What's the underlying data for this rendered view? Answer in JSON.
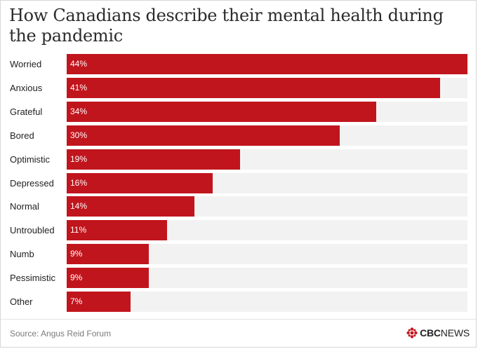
{
  "title": "How Canadians describe their mental health during the pandemic",
  "source": "Source: Angus Reid Forum",
  "logo": {
    "bold": "CBC",
    "light": "NEWS"
  },
  "colors": {
    "bar": "#c1151d",
    "track": "#f2f2f2"
  },
  "chart_data": {
    "type": "bar",
    "orientation": "horizontal",
    "categories": [
      "Worried",
      "Anxious",
      "Grateful",
      "Bored",
      "Optimistic",
      "Depressed",
      "Normal",
      "Untroubled",
      "Numb",
      "Pessimistic",
      "Other"
    ],
    "values": [
      44,
      41,
      34,
      30,
      19,
      16,
      14,
      11,
      9,
      9,
      7
    ],
    "value_labels": [
      "44%",
      "41%",
      "34%",
      "30%",
      "19%",
      "16%",
      "14%",
      "11%",
      "9%",
      "9%",
      "7%"
    ],
    "xlim": [
      0,
      44
    ],
    "grid": false,
    "legend": "none"
  }
}
